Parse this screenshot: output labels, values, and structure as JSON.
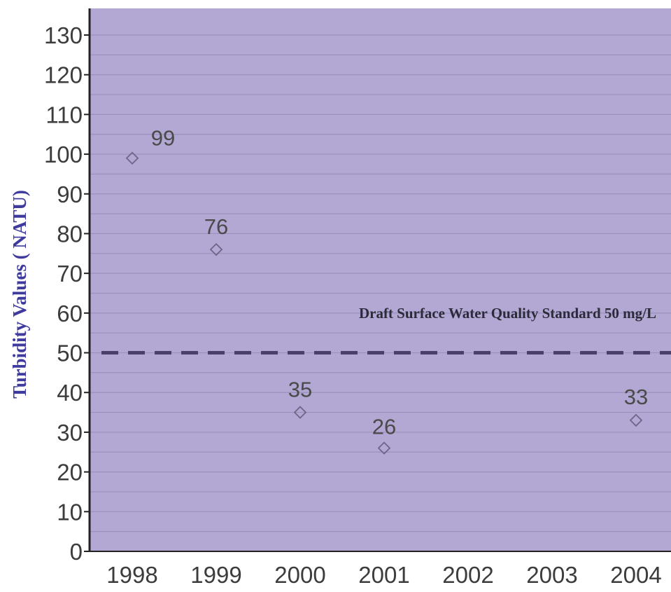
{
  "chart_data": {
    "type": "scatter",
    "title": "",
    "xlabel": "",
    "ylabel": "Turbidity Values ( NATU)",
    "x": [
      "1998",
      "1999",
      "2000",
      "2001",
      "2002",
      "2003",
      "2004"
    ],
    "series": [
      {
        "points": [
          {
            "x": "1998",
            "y": 99,
            "label": "99"
          },
          {
            "x": "1999",
            "y": 76,
            "label": "76"
          },
          {
            "x": "2000",
            "y": 35,
            "label": "35"
          },
          {
            "x": "2001",
            "y": 26,
            "label": "26"
          },
          {
            "x": "2004",
            "y": 33,
            "label": "33"
          }
        ]
      }
    ],
    "ylim": [
      0,
      130
    ],
    "yticks": [
      0,
      10,
      20,
      30,
      40,
      50,
      60,
      70,
      80,
      90,
      100,
      110,
      120,
      130
    ],
    "grid": true,
    "reference_line": {
      "y": 50,
      "style": "dashed",
      "label": "Draft Surface Water Quality Standard  50 mg/L"
    },
    "colors": {
      "plot_background": "#b3a8d4",
      "gridline": "#9a90bd",
      "reference_line": "#4a3f6b",
      "marker": "#6e6688",
      "axis_title": "#3e3a9e"
    }
  }
}
